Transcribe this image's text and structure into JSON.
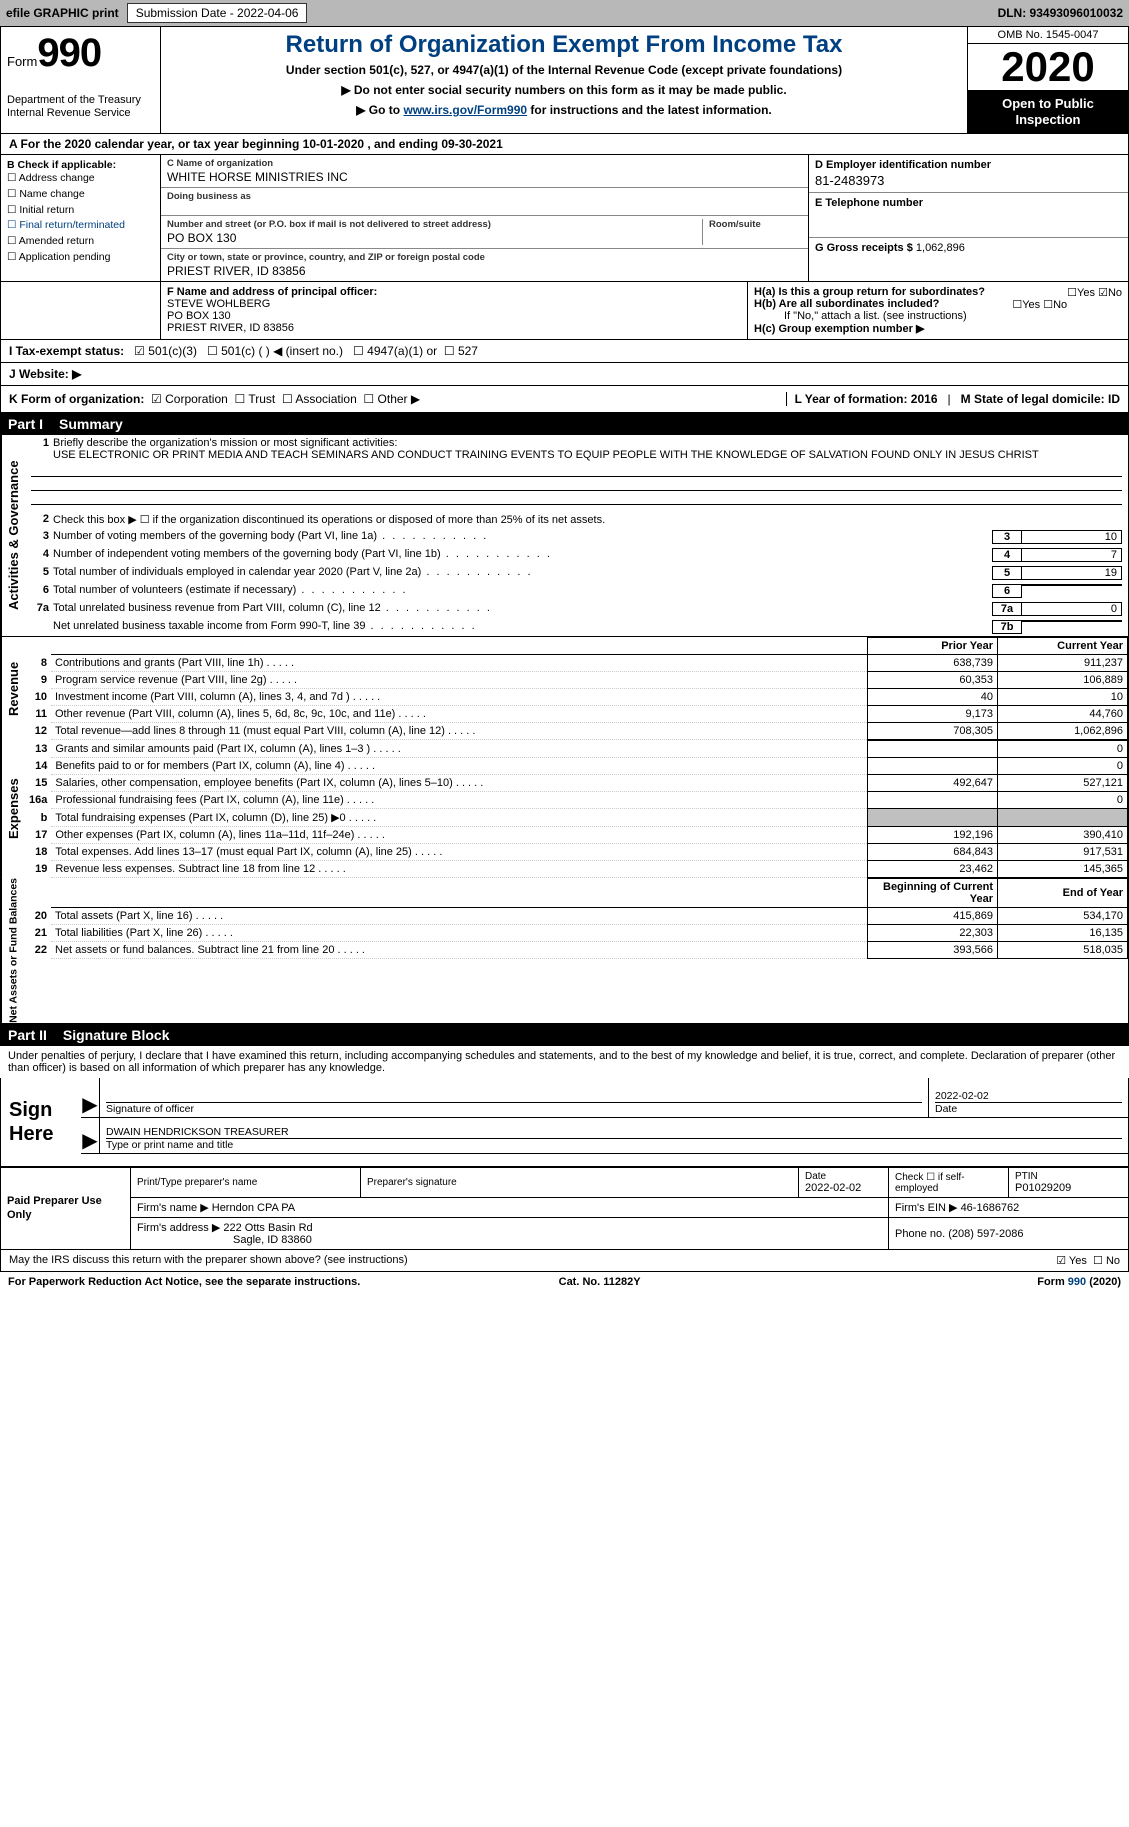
{
  "topbar": {
    "efile_label": "efile GRAPHIC print",
    "submission_label": "Submission Date - 2022-04-06",
    "dln_label": "DLN: 93493096010032"
  },
  "header": {
    "form_word": "Form",
    "form_number": "990",
    "dept": "Department of the Treasury\nInternal Revenue Service",
    "title": "Return of Organization Exempt From Income Tax",
    "subtitle1": "Under section 501(c), 527, or 4947(a)(1) of the Internal Revenue Code (except private foundations)",
    "subtitle2": "▶ Do not enter social security numbers on this form as it may be made public.",
    "subtitle3_pre": "▶ Go to ",
    "subtitle3_link": "www.irs.gov/Form990",
    "subtitle3_post": " for instructions and the latest information.",
    "omb": "OMB No. 1545-0047",
    "year": "2020",
    "inspect": "Open to Public Inspection"
  },
  "periodA": "A For the 2020 calendar year, or tax year beginning 10-01-2020     , and ending 09-30-2021",
  "colB": {
    "header": "B Check if applicable:",
    "items": [
      "Address change",
      "Name change",
      "Initial return",
      "Final return/terminated",
      "Amended return",
      "Application pending"
    ]
  },
  "colC": {
    "name_lab": "C Name of organization",
    "name": "WHITE HORSE MINISTRIES INC",
    "dba_lab": "Doing business as",
    "dba": "",
    "addr_lab": "Number and street (or P.O. box if mail is not delivered to street address)",
    "room_lab": "Room/suite",
    "addr": "PO BOX 130",
    "city_lab": "City or town, state or province, country, and ZIP or foreign postal code",
    "city": "PRIEST RIVER, ID  83856"
  },
  "colD": {
    "lab": "D Employer identification number",
    "val": "81-2483973"
  },
  "colE": {
    "lab": "E Telephone number",
    "val": ""
  },
  "colG": {
    "lab": "G Gross receipts $",
    "val": "1,062,896"
  },
  "secF": {
    "lab": "F  Name and address of principal officer:",
    "line1": "STEVE WOHLBERG",
    "line2": "PO BOX 130",
    "line3": "PRIEST RIVER, ID  83856"
  },
  "secH": {
    "ha_lab": "H(a)  Is this a group return for subordinates?",
    "hb_lab": "H(b)  Are all subordinates included?",
    "hb_note": "If \"No,\" attach a list. (see instructions)",
    "hc_lab": "H(c)  Group exemption number ▶",
    "yes": "Yes",
    "no": "No"
  },
  "secI": {
    "lab": "I   Tax-exempt status:",
    "o1": "501(c)(3)",
    "o2": "501(c) (  ) ◀ (insert no.)",
    "o3": "4947(a)(1) or",
    "o4": "527"
  },
  "secJ": {
    "lab": "J   Website: ▶",
    "val": ""
  },
  "secK": {
    "lab": "K Form of organization:",
    "o1": "Corporation",
    "o2": "Trust",
    "o3": "Association",
    "o4": "Other ▶",
    "L": "L Year of formation: 2016",
    "M": "M State of legal domicile: ID"
  },
  "part1": {
    "header_num": "Part I",
    "header_txt": "Summary",
    "q1_lab": "Briefly describe the organization's mission or most significant activities:",
    "q1_val": "USE ELECTRONIC OR PRINT MEDIA AND TEACH SEMINARS AND CONDUCT TRAINING EVENTS TO EQUIP PEOPLE WITH THE KNOWLEDGE OF SALVATION FOUND ONLY IN JESUS CHRIST",
    "q2": "Check this box ▶ ☐  if the organization discontinued its operations or disposed of more than 25% of its net assets.",
    "gov_label": "Activities & Governance",
    "rev_label": "Revenue",
    "exp_label": "Expenses",
    "na_label": "Net Assets or Fund Balances",
    "rows_gov": [
      {
        "n": "3",
        "t": "Number of voting members of the governing body (Part VI, line 1a)",
        "c": "3",
        "v": "10"
      },
      {
        "n": "4",
        "t": "Number of independent voting members of the governing body (Part VI, line 1b)",
        "c": "4",
        "v": "7"
      },
      {
        "n": "5",
        "t": "Total number of individuals employed in calendar year 2020 (Part V, line 2a)",
        "c": "5",
        "v": "19"
      },
      {
        "n": "6",
        "t": "Total number of volunteers (estimate if necessary)",
        "c": "6",
        "v": ""
      },
      {
        "n": "7a",
        "t": "Total unrelated business revenue from Part VIII, column (C), line 12",
        "c": "7a",
        "v": "0"
      },
      {
        "n": "",
        "t": "Net unrelated business taxable income from Form 990-T, line 39",
        "c": "7b",
        "v": ""
      }
    ],
    "col_py": "Prior Year",
    "col_cy": "Current Year",
    "col_boy": "Beginning of Current Year",
    "col_eoy": "End of Year",
    "rows_rev": [
      {
        "n": "8",
        "t": "Contributions and grants (Part VIII, line 1h)",
        "py": "638,739",
        "cy": "911,237"
      },
      {
        "n": "9",
        "t": "Program service revenue (Part VIII, line 2g)",
        "py": "60,353",
        "cy": "106,889"
      },
      {
        "n": "10",
        "t": "Investment income (Part VIII, column (A), lines 3, 4, and 7d )",
        "py": "40",
        "cy": "10"
      },
      {
        "n": "11",
        "t": "Other revenue (Part VIII, column (A), lines 5, 6d, 8c, 9c, 10c, and 11e)",
        "py": "9,173",
        "cy": "44,760"
      },
      {
        "n": "12",
        "t": "Total revenue—add lines 8 through 11 (must equal Part VIII, column (A), line 12)",
        "py": "708,305",
        "cy": "1,062,896"
      }
    ],
    "rows_exp": [
      {
        "n": "13",
        "t": "Grants and similar amounts paid (Part IX, column (A), lines 1–3 )",
        "py": "",
        "cy": "0"
      },
      {
        "n": "14",
        "t": "Benefits paid to or for members (Part IX, column (A), line 4)",
        "py": "",
        "cy": "0"
      },
      {
        "n": "15",
        "t": "Salaries, other compensation, employee benefits (Part IX, column (A), lines 5–10)",
        "py": "492,647",
        "cy": "527,121"
      },
      {
        "n": "16a",
        "t": "Professional fundraising fees (Part IX, column (A), line 11e)",
        "py": "",
        "cy": "0"
      },
      {
        "n": "b",
        "t": "Total fundraising expenses (Part IX, column (D), line 25) ▶0",
        "py": "SHADE",
        "cy": "SHADE"
      },
      {
        "n": "17",
        "t": "Other expenses (Part IX, column (A), lines 11a–11d, 11f–24e)",
        "py": "192,196",
        "cy": "390,410"
      },
      {
        "n": "18",
        "t": "Total expenses. Add lines 13–17 (must equal Part IX, column (A), line 25)",
        "py": "684,843",
        "cy": "917,531"
      },
      {
        "n": "19",
        "t": "Revenue less expenses. Subtract line 18 from line 12",
        "py": "23,462",
        "cy": "145,365"
      }
    ],
    "rows_na": [
      {
        "n": "20",
        "t": "Total assets (Part X, line 16)",
        "py": "415,869",
        "cy": "534,170"
      },
      {
        "n": "21",
        "t": "Total liabilities (Part X, line 26)",
        "py": "22,303",
        "cy": "16,135"
      },
      {
        "n": "22",
        "t": "Net assets or fund balances. Subtract line 21 from line 20",
        "py": "393,566",
        "cy": "518,035"
      }
    ]
  },
  "part2": {
    "header_num": "Part II",
    "header_txt": "Signature Block",
    "decl": "Under penalties of perjury, I declare that I have examined this return, including accompanying schedules and statements, and to the best of my knowledge and belief, it is true, correct, and complete. Declaration of preparer (other than officer) is based on all information of which preparer has any knowledge.",
    "sign_here": "Sign Here",
    "sig_officer_lab": "Signature of officer",
    "sig_date": "2022-02-02",
    "sig_date_lab": "Date",
    "sig_name": "DWAIN HENDRICKSON  TREASURER",
    "sig_name_lab": "Type or print name and title",
    "prep_header": "Paid Preparer Use Only",
    "prep_name_lab": "Print/Type preparer's name",
    "prep_name": "",
    "prep_sig_lab": "Preparer's signature",
    "prep_sig": "",
    "prep_date_lab": "Date",
    "prep_date": "2022-02-02",
    "prep_self_lab": "Check ☐ if self-employed",
    "ptin_lab": "PTIN",
    "ptin": "P01029209",
    "firm_name_lab": "Firm's name    ▶",
    "firm_name": "Herndon CPA PA",
    "firm_ein_lab": "Firm's EIN ▶",
    "firm_ein": "46-1686762",
    "firm_addr_lab": "Firm's address ▶",
    "firm_addr1": "222 Otts Basin Rd",
    "firm_addr2": "Sagle, ID  83860",
    "firm_phone_lab": "Phone no.",
    "firm_phone": "(208) 597-2086",
    "discuss": "May the IRS discuss this return with the preparer shown above? (see instructions)",
    "yes": "Yes",
    "no": "No"
  },
  "footer": {
    "pra": "For Paperwork Reduction Act Notice, see the separate instructions.",
    "cat": "Cat. No. 11282Y",
    "form": "Form 990 (2020)"
  }
}
